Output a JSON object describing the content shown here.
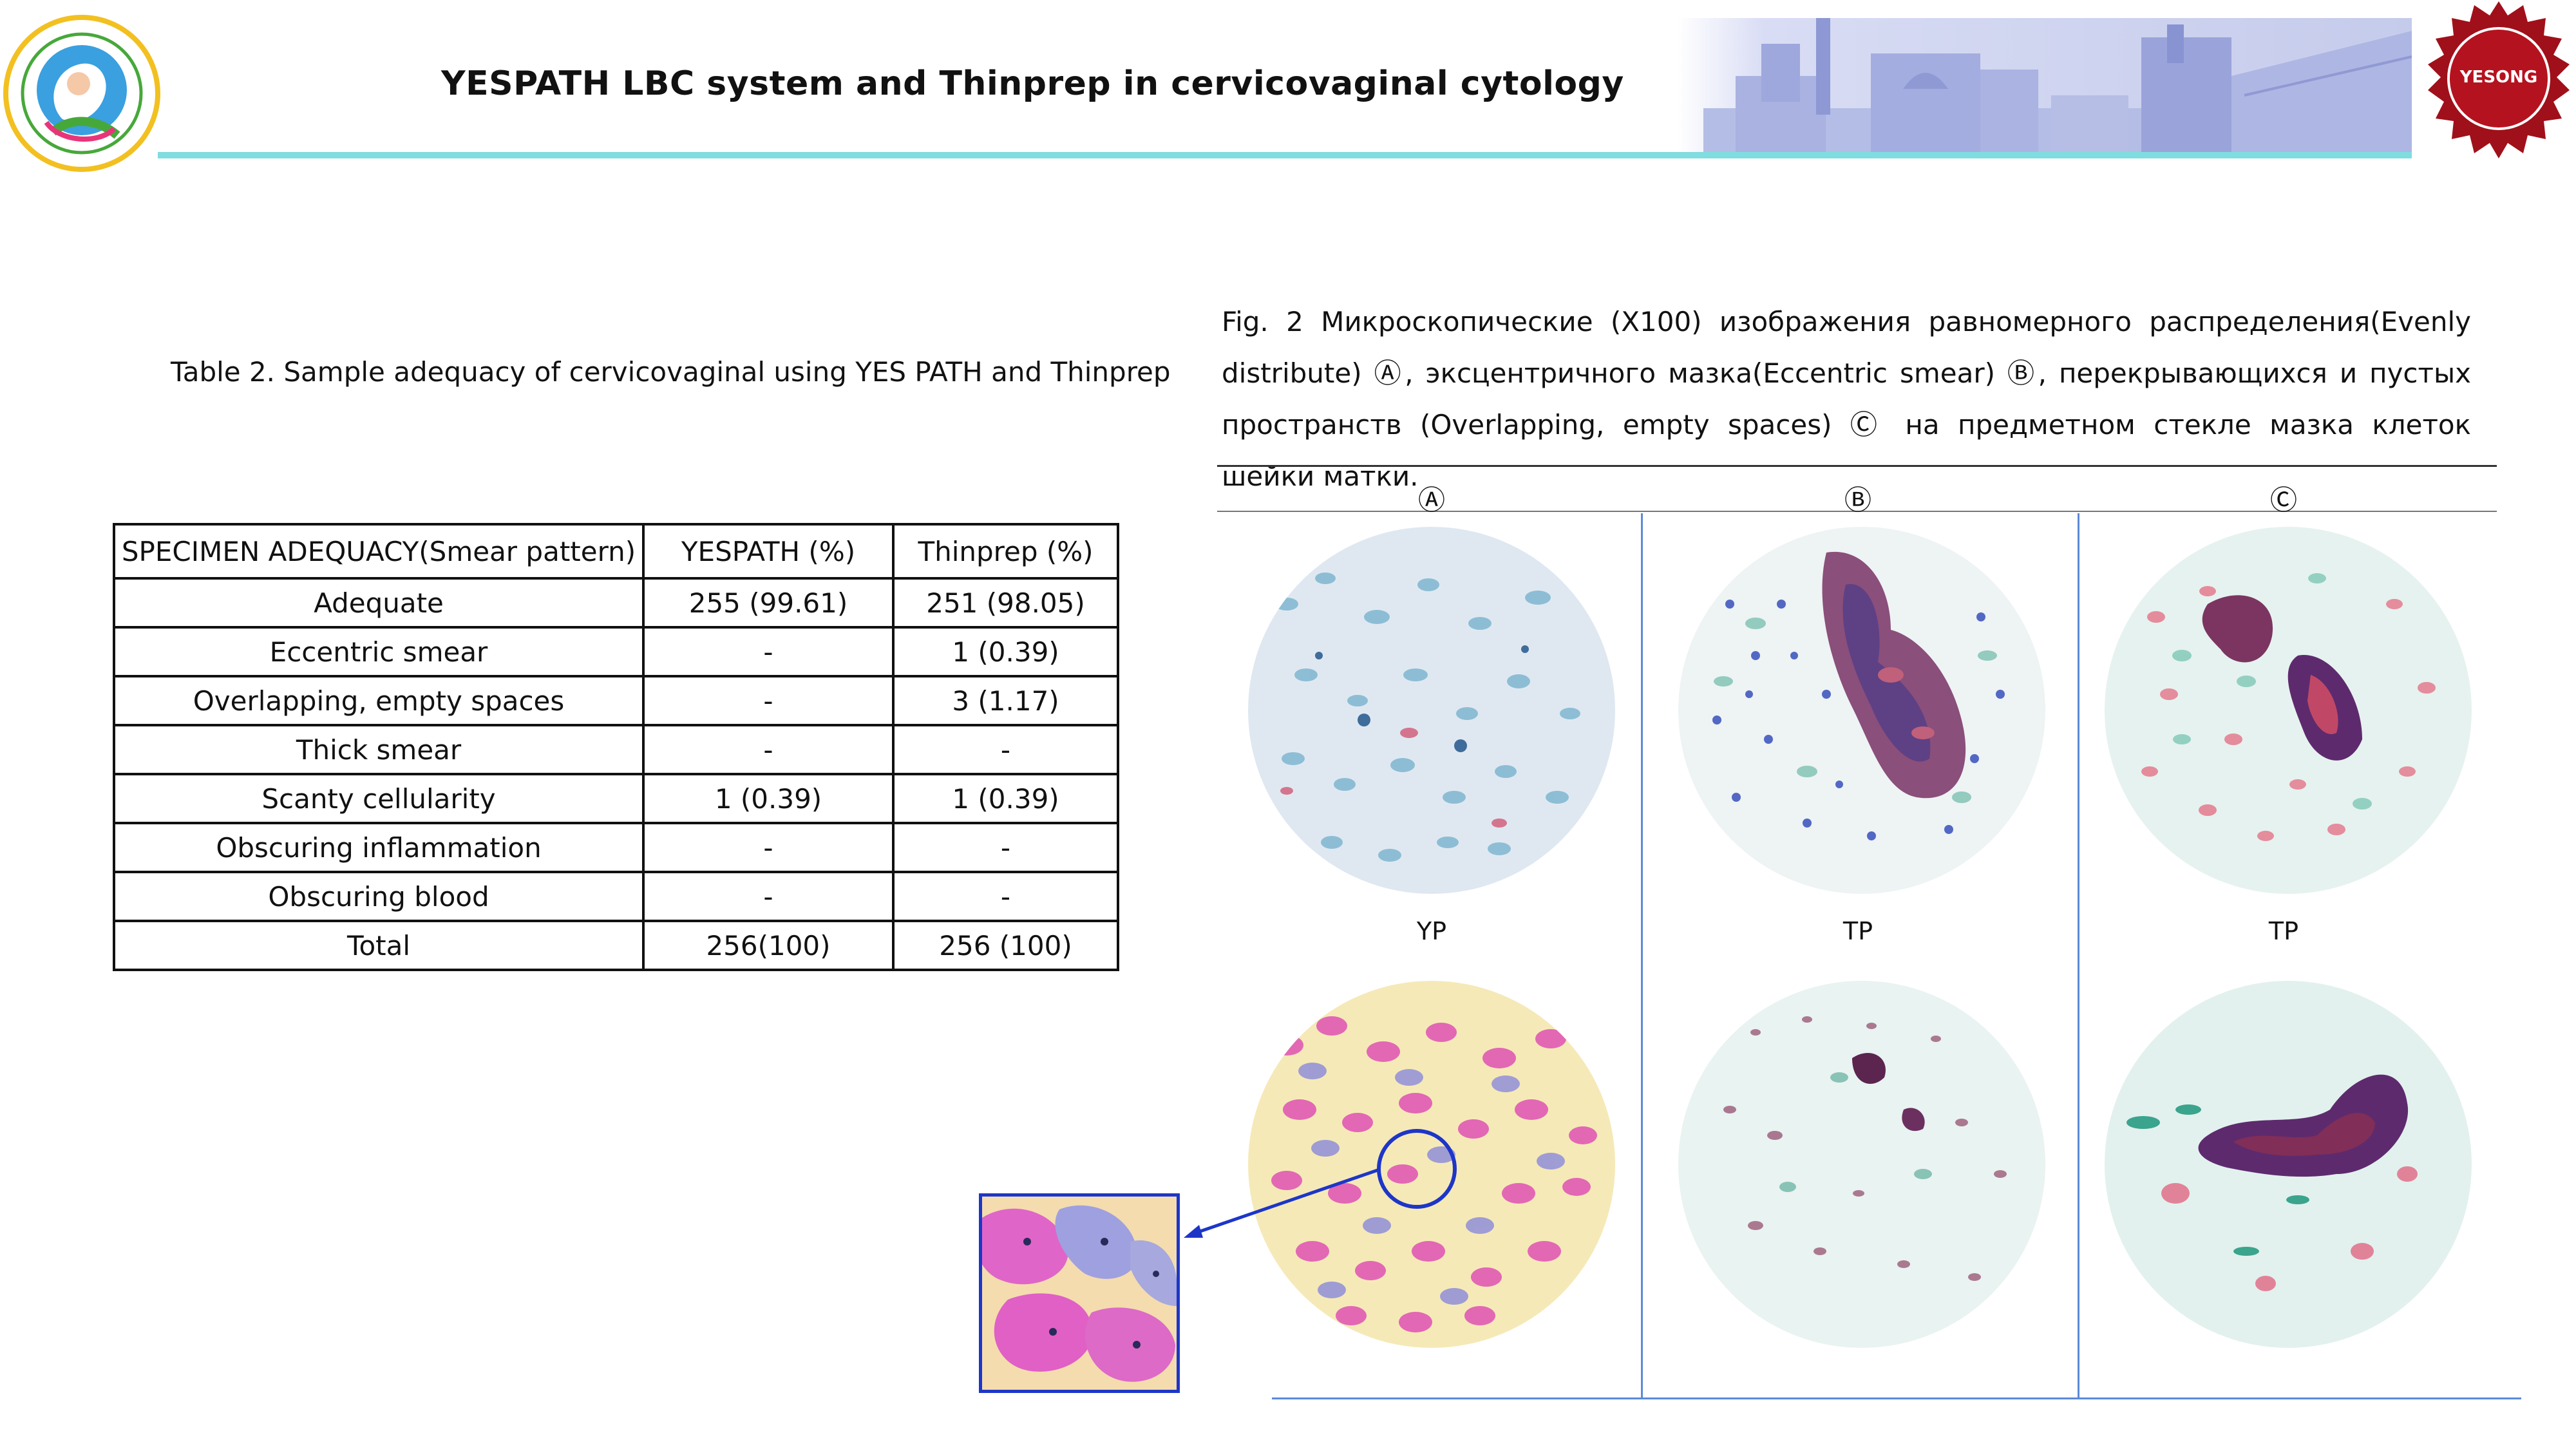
{
  "header": {
    "title": "YESPATH LBC system and Thinprep in cervicovaginal cytology",
    "right_logo_text": "YESONG"
  },
  "table": {
    "caption": "Table 2. Sample adequacy of cervicovaginal using YES PATH and Thinprep",
    "columns": [
      "SPECIMEN ADEQUACY(Smear pattern)",
      "YESPATH (%)",
      "Thinprep (%)"
    ],
    "rows": [
      [
        "Adequate",
        "255 (99.61)",
        "251 (98.05)"
      ],
      [
        "Eccentric smear",
        "-",
        "1 (0.39)"
      ],
      [
        "Overlapping, empty spaces",
        "-",
        "3 (1.17)"
      ],
      [
        "Thick smear",
        "-",
        "-"
      ],
      [
        "Scanty cellularity",
        "1 (0.39)",
        "1 (0.39)"
      ],
      [
        "Obscuring inflammation",
        "-",
        "-"
      ],
      [
        "Obscuring blood",
        "-",
        "-"
      ],
      [
        "Total",
        "256(100)",
        "256 (100)"
      ]
    ]
  },
  "figure": {
    "caption": "Fig. 2 Микроскопические (X100) изображения равномерного распределения(Evenly distribute) Ⓐ, эксцентричного мазка(Eccentric smear) Ⓑ, перекрывающихся и пустых пространств (Overlapping, empty spaces) Ⓒ на предметном стекле мазка клеток шейки матки.",
    "columns": [
      {
        "letter": "Ⓐ",
        "label": "YP"
      },
      {
        "letter": "Ⓑ",
        "label": "TP"
      },
      {
        "letter": "Ⓒ",
        "label": "TP"
      }
    ]
  },
  "colors": {
    "header_rule": "#7fdde0",
    "inset_border": "#1d36c8",
    "divider_blue": "#5b8ad8",
    "yesong_red": "#a0101a"
  }
}
